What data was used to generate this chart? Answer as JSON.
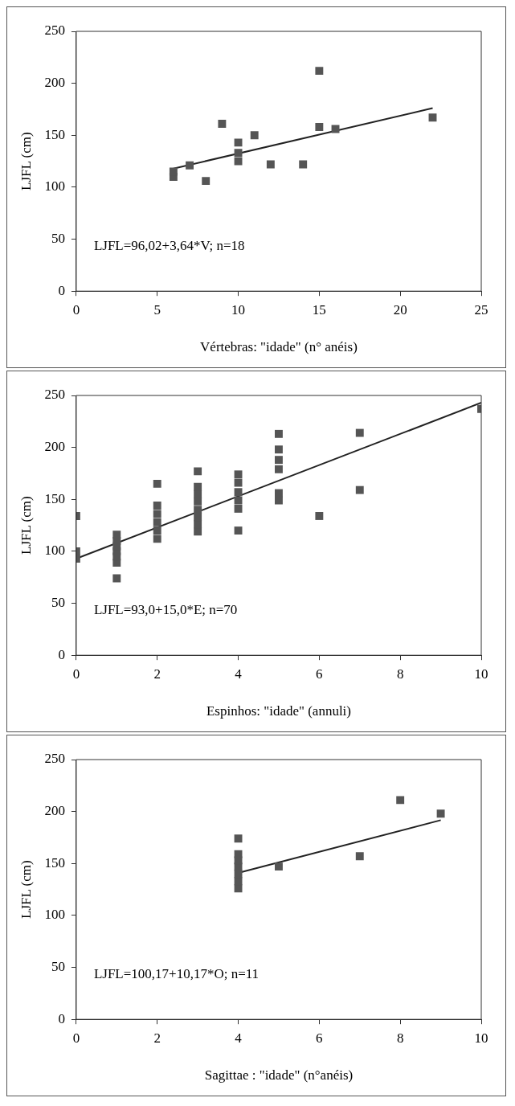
{
  "chart_data": [
    {
      "type": "scatter",
      "xlabel": "Vértebras: \"idade\" (n° anéis)",
      "ylabel": "LJFL (cm)",
      "xlim": [
        0,
        25
      ],
      "xticks": [
        0,
        5,
        10,
        15,
        20,
        25
      ],
      "ylim": [
        0,
        250
      ],
      "yticks": [
        0,
        50,
        100,
        150,
        200,
        250
      ],
      "grid": false,
      "legend": false,
      "annotations": [
        "LJFL=96,02+3,64*V; n=18"
      ],
      "series": [
        {
          "type": "scatter",
          "color": "#555555",
          "marker": "square",
          "x": [
            6,
            6,
            7,
            8,
            9,
            10,
            10,
            10,
            11,
            12,
            14,
            15,
            15,
            16,
            22
          ],
          "values": [
            110,
            115,
            121,
            106,
            161,
            125,
            133,
            143,
            150,
            122,
            122,
            212,
            158,
            156,
            167
          ]
        },
        {
          "type": "line",
          "color": "#222222",
          "x": [
            6,
            22
          ],
          "values": [
            117.9,
            176.1
          ]
        }
      ]
    },
    {
      "type": "scatter",
      "xlabel": "Espinhos: \"idade\" (annuli)",
      "ylabel": "LJFL (cm)",
      "xlim": [
        0,
        10
      ],
      "xticks": [
        0,
        2,
        4,
        6,
        8,
        10
      ],
      "ylim": [
        0,
        250
      ],
      "yticks": [
        0,
        50,
        100,
        150,
        200,
        250
      ],
      "grid": false,
      "legend": false,
      "annotations": [
        "LJFL=93,0+15,0*E; n=70"
      ],
      "series": [
        {
          "type": "scatter",
          "color": "#555555",
          "marker": "square",
          "x": [
            0,
            0,
            0,
            1,
            1,
            1,
            1,
            1,
            1,
            1,
            2,
            2,
            2,
            2,
            2,
            2,
            3,
            3,
            3,
            3,
            3,
            3,
            3,
            3,
            4,
            4,
            4,
            4,
            4,
            4,
            5,
            5,
            5,
            5,
            5,
            5,
            6,
            7,
            7,
            10
          ],
          "values": [
            134,
            93,
            100,
            74,
            89,
            95,
            100,
            105,
            110,
            116,
            165,
            112,
            120,
            128,
            136,
            144,
            177,
            119,
            126,
            133,
            140,
            148,
            155,
            162,
            141,
            149,
            157,
            166,
            174,
            120,
            213,
            179,
            188,
            198,
            149,
            156,
            134,
            214,
            159,
            237
          ]
        },
        {
          "type": "line",
          "color": "#222222",
          "x": [
            0,
            10
          ],
          "values": [
            93,
            243
          ]
        }
      ]
    },
    {
      "type": "scatter",
      "xlabel": "Sagittae : \"idade\" (n°anéis)",
      "ylabel": "LJFL (cm)",
      "xlim": [
        0,
        10
      ],
      "xticks": [
        0,
        2,
        4,
        6,
        8,
        10
      ],
      "ylim": [
        0,
        250
      ],
      "yticks": [
        0,
        50,
        100,
        150,
        200,
        250
      ],
      "grid": false,
      "legend": false,
      "annotations": [
        "LJFL=100,17+10,17*O; n=11"
      ],
      "series": [
        {
          "type": "scatter",
          "color": "#555555",
          "marker": "square",
          "x": [
            4,
            4,
            4,
            4,
            4,
            4,
            4,
            5,
            7,
            8,
            9
          ],
          "values": [
            174,
            126,
            133,
            140,
            147,
            153,
            159,
            147,
            157,
            211,
            198
          ]
        },
        {
          "type": "line",
          "color": "#222222",
          "x": [
            4,
            9
          ],
          "values": [
            140.9,
            191.7
          ]
        }
      ]
    }
  ]
}
